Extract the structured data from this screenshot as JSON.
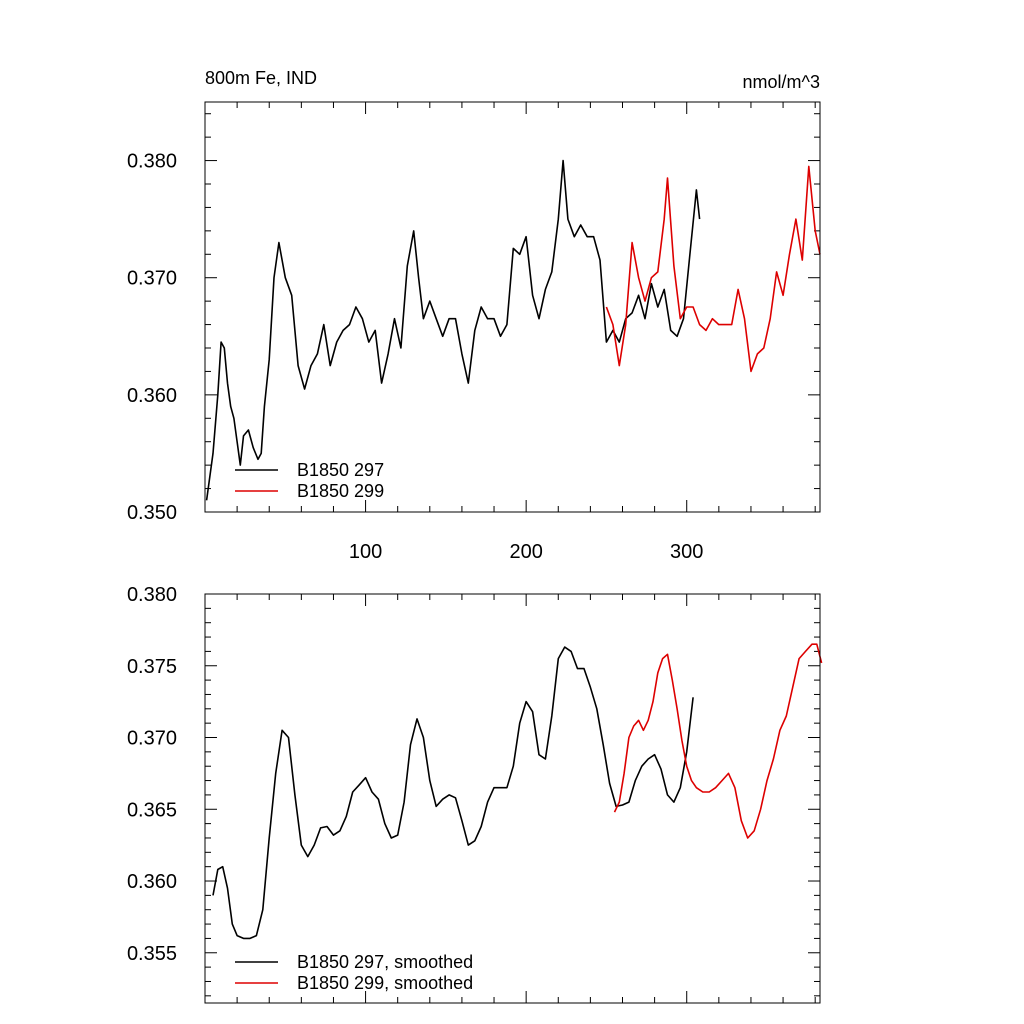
{
  "chart_data": [
    {
      "type": "line",
      "title_left": "800m Fe, IND",
      "title_right": "nmol/m^3",
      "xlim": [
        0,
        383
      ],
      "ylim": [
        0.35,
        0.385
      ],
      "x_ticks": [
        100,
        200,
        300
      ],
      "y_ticks": [
        0.35,
        0.36,
        0.37,
        0.38
      ],
      "y_tick_labels": [
        "0.350",
        "0.360",
        "0.370",
        "0.380"
      ],
      "x_tick_labels": [
        "100",
        "200",
        "300"
      ],
      "legend": "bottom-left",
      "grid": false,
      "series": [
        {
          "name": "B1850 297",
          "color": "#000000",
          "x": [
            1,
            5,
            8,
            10,
            12,
            14,
            16,
            18,
            20,
            22,
            24,
            27,
            30,
            33,
            35,
            37,
            40,
            43,
            46,
            50,
            54,
            58,
            62,
            66,
            70,
            74,
            78,
            82,
            86,
            90,
            94,
            98,
            102,
            106,
            110,
            114,
            118,
            122,
            126,
            130,
            133,
            136,
            140,
            144,
            148,
            152,
            156,
            160,
            164,
            168,
            172,
            176,
            180,
            184,
            188,
            192,
            196,
            200,
            204,
            208,
            212,
            216,
            220,
            223,
            226,
            230,
            234,
            238,
            242,
            246,
            250,
            254,
            258,
            262,
            266,
            270,
            274,
            278,
            282,
            286,
            290,
            294,
            298,
            302,
            306,
            308
          ],
          "y": [
            0.351,
            0.355,
            0.36,
            0.3645,
            0.364,
            0.361,
            0.359,
            0.358,
            0.356,
            0.354,
            0.3565,
            0.357,
            0.3555,
            0.3545,
            0.355,
            0.359,
            0.363,
            0.37,
            0.373,
            0.37,
            0.3685,
            0.3625,
            0.3605,
            0.3625,
            0.3635,
            0.366,
            0.3625,
            0.3645,
            0.3655,
            0.366,
            0.3675,
            0.3665,
            0.3645,
            0.3655,
            0.361,
            0.3635,
            0.3665,
            0.364,
            0.371,
            0.374,
            0.37,
            0.3665,
            0.368,
            0.3665,
            0.365,
            0.3665,
            0.3665,
            0.3635,
            0.361,
            0.3655,
            0.3675,
            0.3665,
            0.3665,
            0.365,
            0.366,
            0.3725,
            0.372,
            0.3735,
            0.3685,
            0.3665,
            0.369,
            0.3705,
            0.375,
            0.38,
            0.375,
            0.3735,
            0.3745,
            0.3735,
            0.3735,
            0.3715,
            0.3645,
            0.3655,
            0.3645,
            0.3665,
            0.367,
            0.3685,
            0.3665,
            0.3695,
            0.3675,
            0.369,
            0.3655,
            0.365,
            0.3665,
            0.372,
            0.3775,
            0.375
          ]
        },
        {
          "name": "B1850 299",
          "color": "#dd0000",
          "x": [
            250,
            254,
            258,
            262,
            266,
            270,
            274,
            278,
            282,
            286,
            288,
            292,
            296,
            300,
            304,
            308,
            312,
            316,
            320,
            324,
            328,
            332,
            336,
            340,
            344,
            348,
            352,
            356,
            360,
            364,
            368,
            372,
            376,
            380,
            383
          ],
          "y": [
            0.3675,
            0.366,
            0.3625,
            0.366,
            0.373,
            0.37,
            0.368,
            0.37,
            0.3705,
            0.375,
            0.3785,
            0.371,
            0.3665,
            0.3675,
            0.3675,
            0.366,
            0.3655,
            0.3665,
            0.366,
            0.366,
            0.366,
            0.369,
            0.3665,
            0.362,
            0.3635,
            0.364,
            0.3665,
            0.3705,
            0.3685,
            0.372,
            0.375,
            0.3715,
            0.3795,
            0.374,
            0.372
          ]
        }
      ]
    },
    {
      "type": "line",
      "xlim": [
        0,
        383
      ],
      "ylim": [
        0.3515,
        0.38
      ],
      "x_ticks": [
        100,
        200,
        300
      ],
      "y_ticks": [
        0.355,
        0.36,
        0.365,
        0.37,
        0.375,
        0.38
      ],
      "y_tick_labels": [
        "0.355",
        "0.360",
        "0.365",
        "0.370",
        "0.375",
        "0.380"
      ],
      "legend": "bottom-left",
      "grid": false,
      "series": [
        {
          "name": "B1850 297, smoothed",
          "color": "#000000",
          "x": [
            5,
            8,
            11,
            14,
            17,
            20,
            24,
            28,
            32,
            36,
            40,
            44,
            48,
            52,
            56,
            60,
            64,
            68,
            72,
            76,
            80,
            84,
            88,
            92,
            96,
            100,
            104,
            108,
            112,
            116,
            120,
            124,
            128,
            132,
            136,
            140,
            144,
            148,
            152,
            156,
            160,
            164,
            168,
            172,
            176,
            180,
            184,
            188,
            192,
            196,
            200,
            204,
            208,
            212,
            216,
            220,
            224,
            228,
            232,
            236,
            240,
            244,
            248,
            252,
            256,
            260,
            264,
            268,
            272,
            276,
            280,
            284,
            288,
            292,
            296,
            300,
            304
          ],
          "y": [
            0.359,
            0.3608,
            0.361,
            0.3595,
            0.357,
            0.3562,
            0.356,
            0.356,
            0.3562,
            0.358,
            0.363,
            0.3675,
            0.3705,
            0.37,
            0.366,
            0.3625,
            0.3617,
            0.3625,
            0.3637,
            0.3638,
            0.3632,
            0.3635,
            0.3645,
            0.3662,
            0.3667,
            0.3672,
            0.3662,
            0.3657,
            0.364,
            0.363,
            0.3632,
            0.3655,
            0.3695,
            0.3713,
            0.37,
            0.367,
            0.3652,
            0.3657,
            0.366,
            0.3658,
            0.3642,
            0.3625,
            0.3628,
            0.3638,
            0.3655,
            0.3665,
            0.3665,
            0.3665,
            0.368,
            0.371,
            0.3725,
            0.3718,
            0.3688,
            0.3685,
            0.3715,
            0.3755,
            0.3763,
            0.376,
            0.3748,
            0.3748,
            0.3735,
            0.372,
            0.3695,
            0.3668,
            0.3652,
            0.3653,
            0.3655,
            0.367,
            0.368,
            0.3685,
            0.3688,
            0.3678,
            0.366,
            0.3655,
            0.3665,
            0.369,
            0.3728
          ]
        },
        {
          "name": "B1850 299, smoothed",
          "color": "#dd0000",
          "x": [
            255,
            258,
            261,
            264,
            267,
            270,
            273,
            276,
            279,
            282,
            285,
            288,
            291,
            294,
            297,
            300,
            303,
            306,
            310,
            314,
            318,
            322,
            326,
            330,
            334,
            338,
            342,
            346,
            350,
            354,
            358,
            362,
            366,
            370,
            374,
            378,
            381,
            384
          ],
          "y": [
            0.3648,
            0.3655,
            0.3675,
            0.37,
            0.3708,
            0.3712,
            0.3705,
            0.3712,
            0.3725,
            0.3745,
            0.3755,
            0.3758,
            0.374,
            0.372,
            0.3698,
            0.368,
            0.367,
            0.3665,
            0.3662,
            0.3662,
            0.3665,
            0.367,
            0.3675,
            0.3665,
            0.3642,
            0.363,
            0.3635,
            0.365,
            0.367,
            0.3685,
            0.3705,
            0.3715,
            0.3735,
            0.3755,
            0.376,
            0.3765,
            0.3765,
            0.3752
          ]
        }
      ]
    }
  ]
}
